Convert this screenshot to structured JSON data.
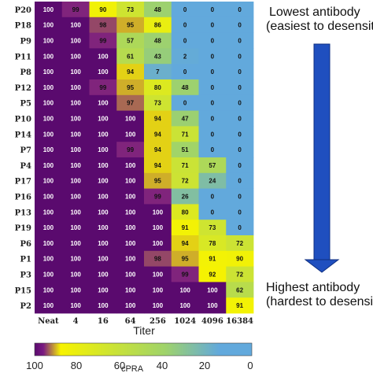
{
  "chart_data": {
    "type": "heatmap",
    "xlabel": "Titer",
    "x_categories": [
      "Neat",
      "4",
      "16",
      "64",
      "256",
      "1024",
      "4096",
      "16384"
    ],
    "y_categories": [
      "P20",
      "P18",
      "P9",
      "P11",
      "P8",
      "P12",
      "P5",
      "P10",
      "P14",
      "P7",
      "P4",
      "P17",
      "P16",
      "P13",
      "P19",
      "P6",
      "P1",
      "P3",
      "P15",
      "P2"
    ],
    "values": [
      [
        100,
        99,
        90,
        73,
        48,
        0,
        0,
        0
      ],
      [
        100,
        100,
        98,
        95,
        86,
        0,
        0,
        0
      ],
      [
        100,
        100,
        99,
        57,
        48,
        0,
        0,
        0
      ],
      [
        100,
        100,
        100,
        61,
        43,
        2,
        0,
        0
      ],
      [
        100,
        100,
        100,
        94,
        7,
        0,
        0,
        0
      ],
      [
        100,
        100,
        99,
        95,
        80,
        48,
        0,
        0
      ],
      [
        100,
        100,
        100,
        97,
        73,
        0,
        0,
        0
      ],
      [
        100,
        100,
        100,
        100,
        94,
        47,
        0,
        0
      ],
      [
        100,
        100,
        100,
        100,
        94,
        71,
        0,
        0
      ],
      [
        100,
        100,
        100,
        99,
        94,
        51,
        0,
        0
      ],
      [
        100,
        100,
        100,
        100,
        94,
        71,
        57,
        0
      ],
      [
        100,
        100,
        100,
        100,
        95,
        72,
        24,
        0
      ],
      [
        100,
        100,
        100,
        100,
        99,
        26,
        0,
        0
      ],
      [
        100,
        100,
        100,
        100,
        100,
        80,
        0,
        0
      ],
      [
        100,
        100,
        100,
        100,
        100,
        91,
        73,
        0
      ],
      [
        100,
        100,
        100,
        100,
        100,
        94,
        78,
        72
      ],
      [
        100,
        100,
        100,
        100,
        98,
        95,
        91,
        90
      ],
      [
        100,
        100,
        100,
        100,
        100,
        99,
        92,
        72
      ],
      [
        100,
        100,
        100,
        100,
        100,
        100,
        100,
        62
      ],
      [
        100,
        100,
        100,
        100,
        100,
        100,
        100,
        91
      ]
    ],
    "colorbar": {
      "title": "cPRA",
      "ticks": [
        "100",
        "80",
        "60",
        "40",
        "20",
        "0"
      ],
      "range": [
        100,
        0
      ],
      "colors": [
        "#5a0a6e",
        "#7a1a82",
        "#f7f300",
        "#9fd36a",
        "#62a9dc"
      ]
    }
  },
  "annotations": {
    "top_line1": "Lowest antibody",
    "top_line2": "(easiest to desensit",
    "bottom_line1": "Highest antibody",
    "bottom_line2": "(hardest to desensiti"
  },
  "arrow_color": "#1f4fbf"
}
